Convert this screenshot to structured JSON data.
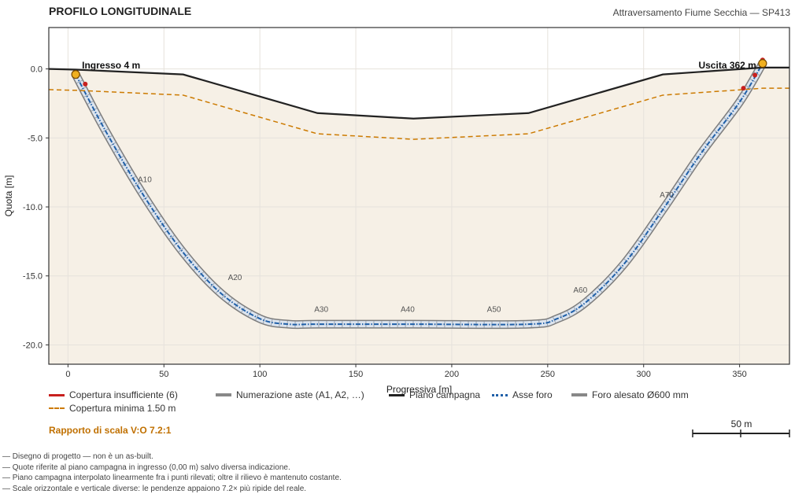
{
  "header": {
    "title": "PROFILO LONGITUDINALE",
    "subtitle": "Attraversamento Fiume Secchia — SP413"
  },
  "chart_data": {
    "type": "line",
    "xlabel": "Progressiva [m]",
    "ylabel": "Quota [m]",
    "xlim": [
      -10,
      376
    ],
    "ylim": [
      -21.4,
      3.0
    ],
    "xticks": [
      0,
      50,
      100,
      150,
      200,
      250,
      300,
      350
    ],
    "yticks": [
      0.0,
      -5.0,
      -10.0,
      -15.0,
      -20.0
    ],
    "ytick_labels": [
      "0.0",
      "-5.0",
      "-10.0",
      "-15.0",
      "-20.0"
    ],
    "grid": true,
    "series": [
      {
        "name": "Piano campagna",
        "color": "#222222",
        "x": [
          -10,
          4,
          60,
          130,
          180,
          240,
          310,
          362,
          376
        ],
        "y": [
          0.0,
          -0.05,
          -0.4,
          -3.2,
          -3.6,
          -3.2,
          -0.4,
          0.1,
          0.1
        ]
      },
      {
        "name": "Copertura minima 1.50 m",
        "color": "#cc7a00",
        "x": [
          -10,
          4,
          60,
          130,
          180,
          240,
          310,
          362,
          376
        ],
        "y": [
          -1.5,
          -1.55,
          -1.9,
          -4.7,
          -5.1,
          -4.7,
          -1.9,
          -1.4,
          -1.4
        ]
      },
      {
        "name": "Asse foro",
        "color": "#1f5fa8",
        "x": [
          4,
          20,
          40,
          60,
          80,
          100,
          115,
          130,
          180,
          240,
          255,
          270,
          290,
          310,
          330,
          350,
          362
        ],
        "y": [
          -0.4,
          -4.6,
          -9.3,
          -13.3,
          -16.3,
          -18.1,
          -18.5,
          -18.5,
          -18.5,
          -18.5,
          -18.1,
          -16.9,
          -14.1,
          -10.2,
          -6.1,
          -2.4,
          0.4
        ]
      }
    ],
    "bore_label": "Foro alesato Ø600 mm",
    "rod_label": "Numerazione aste (A1, A2, …)",
    "rods": [
      {
        "label": "A10",
        "x": 40,
        "y": -8.2
      },
      {
        "label": "A20",
        "x": 87,
        "y": -15.3
      },
      {
        "label": "A30",
        "x": 132,
        "y": -17.6
      },
      {
        "label": "A40",
        "x": 177,
        "y": -17.6
      },
      {
        "label": "A50",
        "x": 222,
        "y": -17.6
      },
      {
        "label": "A60",
        "x": 267,
        "y": -16.2
      },
      {
        "label": "A70",
        "x": 312,
        "y": -9.3
      }
    ],
    "insufficient_cover": {
      "label": "Copertura insufficiente (6)",
      "color": "#c8201e",
      "points": [
        {
          "x": 4,
          "y": -0.4
        },
        {
          "x": 9,
          "y": -1.1
        },
        {
          "x": 352,
          "y": -1.4
        },
        {
          "x": 358,
          "y": -0.45
        },
        {
          "x": 362,
          "y": 0.55
        },
        {
          "x": 362,
          "y": 0.65
        }
      ]
    },
    "endpoints": [
      {
        "label": "Ingresso 4 m",
        "x": 4,
        "y": -0.4
      },
      {
        "label": "Uscita 362 m",
        "x": 362,
        "y": 0.4
      }
    ]
  },
  "legend": {
    "insufficient": "Copertura insufficiente (6)",
    "min_cover": "Copertura minima 1.50 m",
    "rods": "Numerazione aste (A1, A2, …)",
    "ground": "Piano campagna",
    "axis": "Asse foro",
    "bore": "Foro alesato Ø600 mm"
  },
  "scale_ratio": "Rapporto di scala V:O 7.2:1",
  "scalebar_label": "50 m",
  "notes": [
    "— Disegno di progetto — non è un as-built.",
    "— Quote riferite al piano campagna in ingresso (0,00 m) salvo diversa indicazione.",
    "— Piano campagna interpolato linearmente fra i punti rilevati; oltre il rilievo è mantenuto costante.",
    "— Scale orizzontale e verticale diverse: le pendenze appaiono 7.2× più ripide del reale."
  ]
}
